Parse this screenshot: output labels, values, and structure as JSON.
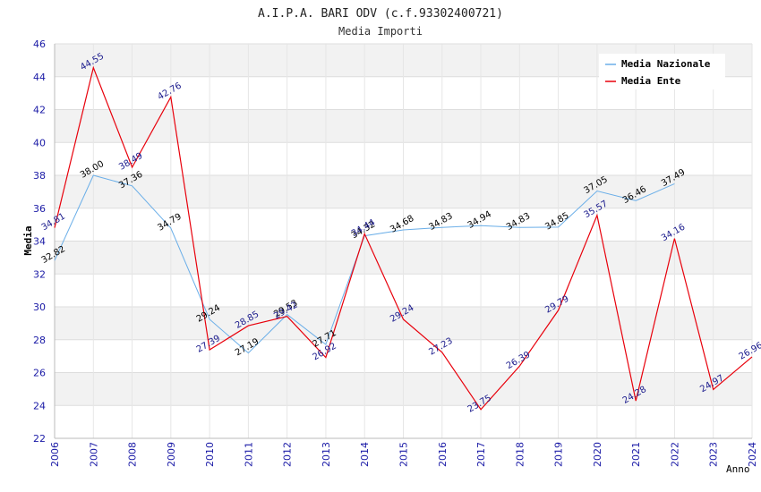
{
  "chart_data": {
    "type": "line",
    "title": "A.I.P.A. BARI ODV (c.f.93302400721)",
    "subtitle": "Media Importi",
    "xlabel": "Anno",
    "ylabel": "Media",
    "ylim": [
      22,
      46
    ],
    "yticks": [
      22,
      24,
      26,
      28,
      30,
      32,
      34,
      36,
      38,
      40,
      42,
      44,
      46
    ],
    "x": [
      2006,
      2007,
      2008,
      2009,
      2010,
      2011,
      2012,
      2013,
      2014,
      2015,
      2016,
      2017,
      2018,
      2019,
      2020,
      2021,
      2022,
      2023,
      2024
    ],
    "legend_position": "top-right",
    "series": [
      {
        "name": "Media Nazionale",
        "color": "#6aaee8",
        "label_color": "#000000",
        "values": [
          32.82,
          38.0,
          37.36,
          34.79,
          29.24,
          27.19,
          29.53,
          27.71,
          34.32,
          34.68,
          34.83,
          34.94,
          34.83,
          34.85,
          37.05,
          36.46,
          37.49,
          null,
          null
        ],
        "labels": [
          "32.82",
          "38.00",
          "37.36",
          "34.79",
          "29.24",
          "27.19",
          "29.53",
          "27.71",
          "34.32",
          "34.68",
          "34.83",
          "34.94",
          "34.83",
          "34.85",
          "37.05",
          "36.46",
          "37.49",
          null,
          null
        ]
      },
      {
        "name": "Media Ente",
        "color": "#e8000b",
        "label_color": "#1a1a8c",
        "values": [
          34.81,
          44.55,
          38.49,
          42.76,
          27.39,
          28.85,
          29.42,
          26.92,
          34.44,
          29.24,
          27.23,
          23.75,
          26.39,
          29.79,
          35.57,
          24.28,
          34.16,
          24.97,
          26.96
        ],
        "labels": [
          "34.81",
          "44.55",
          "38.49",
          "42.76",
          "27.39",
          "28.85",
          "29.42",
          "26.92",
          "34.44",
          "29.24",
          "27.23",
          "23.75",
          "26.39",
          "29.79",
          "35.57",
          "24.28",
          "34.16",
          "24.97",
          "26.96"
        ]
      }
    ]
  }
}
